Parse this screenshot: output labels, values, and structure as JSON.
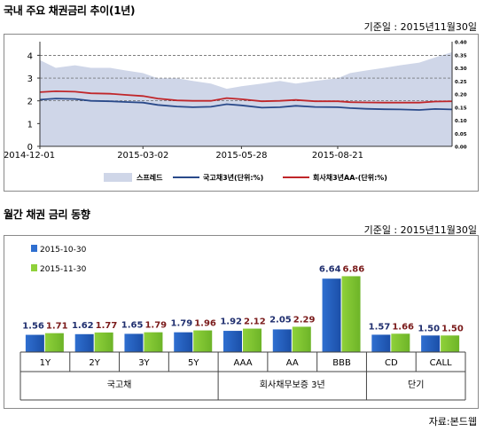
{
  "section1": {
    "title": "국내 주요 채권금리 추이(1년)",
    "ref_date": "기준일 : 2015년11월30일"
  },
  "section2": {
    "title": "월간 채권 금리 동향",
    "ref_date": "기준일 : 2015년11월30일"
  },
  "source": "자료:본드웹",
  "colors": {
    "spread": "#cfd6e8",
    "gov": "#2a4a8a",
    "corp": "#c0262a",
    "bar_oct": "#2f6fd0",
    "bar_nov": "#8fd13a"
  },
  "chart_data": [
    {
      "type": "line",
      "x_tick_labels": [
        "2014-12-01",
        "2015-03-02",
        "2015-05-28",
        "2015-08-21"
      ],
      "x_range": [
        "2014-12-01",
        "2015-11-30"
      ],
      "y_left_ticks": [
        "0",
        "1",
        "2",
        "3",
        "4"
      ],
      "y_left_range": [
        0,
        4.6
      ],
      "y_right_ticks": [
        "0.00",
        "0.05",
        "0.10",
        "0.15",
        "0.20",
        "0.25",
        "0.30",
        "0.35",
        "0.40"
      ],
      "y_right_range": [
        0,
        0.4
      ],
      "dashed_grid": [
        2,
        3,
        4
      ],
      "legend": [
        "스프레드",
        "국고채3년(단위:%)",
        "회사채3년AA-(단위:%)"
      ],
      "series": [
        {
          "name": "스프레드",
          "axis": "right",
          "style": "area",
          "x": [
            "2014-12-01",
            "2014-12-15",
            "2015-01-01",
            "2015-01-15",
            "2015-02-01",
            "2015-02-15",
            "2015-03-02",
            "2015-03-15",
            "2015-04-01",
            "2015-04-15",
            "2015-05-01",
            "2015-05-15",
            "2015-05-28",
            "2015-06-15",
            "2015-07-01",
            "2015-07-15",
            "2015-08-01",
            "2015-08-21",
            "2015-09-01",
            "2015-09-15",
            "2015-10-01",
            "2015-10-15",
            "2015-11-01",
            "2015-11-15",
            "2015-11-30"
          ],
          "values": [
            0.33,
            0.3,
            0.31,
            0.3,
            0.3,
            0.29,
            0.28,
            0.26,
            0.26,
            0.25,
            0.24,
            0.22,
            0.23,
            0.24,
            0.25,
            0.24,
            0.25,
            0.26,
            0.28,
            0.29,
            0.3,
            0.31,
            0.32,
            0.34,
            0.36
          ]
        },
        {
          "name": "국고채3년(단위:%)",
          "axis": "left",
          "style": "line",
          "x": [
            "2014-12-01",
            "2014-12-15",
            "2015-01-01",
            "2015-01-15",
            "2015-02-01",
            "2015-02-15",
            "2015-03-02",
            "2015-03-15",
            "2015-04-01",
            "2015-04-15",
            "2015-05-01",
            "2015-05-15",
            "2015-05-28",
            "2015-06-15",
            "2015-07-01",
            "2015-07-15",
            "2015-08-01",
            "2015-08-21",
            "2015-09-01",
            "2015-09-15",
            "2015-10-01",
            "2015-10-15",
            "2015-11-01",
            "2015-11-15",
            "2015-11-30"
          ],
          "values": [
            2.05,
            2.1,
            2.08,
            2.0,
            1.98,
            1.95,
            1.92,
            1.82,
            1.75,
            1.72,
            1.74,
            1.85,
            1.8,
            1.7,
            1.72,
            1.78,
            1.73,
            1.72,
            1.68,
            1.65,
            1.63,
            1.62,
            1.6,
            1.64,
            1.62
          ]
        },
        {
          "name": "회사채3년AA-(단위:%)",
          "axis": "left",
          "style": "line",
          "x": [
            "2014-12-01",
            "2014-12-15",
            "2015-01-01",
            "2015-01-15",
            "2015-02-01",
            "2015-02-15",
            "2015-03-02",
            "2015-03-15",
            "2015-04-01",
            "2015-04-15",
            "2015-05-01",
            "2015-05-15",
            "2015-05-28",
            "2015-06-15",
            "2015-07-01",
            "2015-07-15",
            "2015-08-01",
            "2015-08-21",
            "2015-09-01",
            "2015-09-15",
            "2015-10-01",
            "2015-10-15",
            "2015-11-01",
            "2015-11-15",
            "2015-11-30"
          ],
          "values": [
            2.38,
            2.42,
            2.4,
            2.33,
            2.31,
            2.26,
            2.21,
            2.1,
            2.02,
            2.0,
            2.0,
            2.12,
            2.07,
            1.98,
            2.0,
            2.04,
            1.98,
            1.98,
            1.94,
            1.93,
            1.92,
            1.92,
            1.92,
            1.97,
            1.98
          ]
        }
      ]
    },
    {
      "type": "bar",
      "legend": [
        "2015-10-30",
        "2015-11-30"
      ],
      "categories": [
        "1Y",
        "2Y",
        "3Y",
        "5Y",
        "AAA",
        "AA",
        "BBB",
        "CD",
        "CALL"
      ],
      "groups": [
        {
          "label": "국고채",
          "span": [
            0,
            3
          ]
        },
        {
          "label": "회사채무보증 3년",
          "span": [
            4,
            6
          ]
        },
        {
          "label": "단기",
          "span": [
            7,
            8
          ]
        }
      ],
      "series": [
        {
          "name": "2015-10-30",
          "values": [
            1.56,
            1.62,
            1.65,
            1.79,
            1.92,
            2.05,
            6.64,
            1.57,
            1.5
          ]
        },
        {
          "name": "2015-11-30",
          "values": [
            1.71,
            1.77,
            1.79,
            1.96,
            2.12,
            2.29,
            6.86,
            1.66,
            1.5
          ]
        }
      ],
      "labels_oct": [
        "1.56",
        "1.62",
        "1.65",
        "1.79",
        "1.92",
        "2.05",
        "6.64",
        "1.57",
        "1.50"
      ],
      "labels_nov": [
        "1.71",
        "1.77",
        "1.79",
        "1.96",
        "2.12",
        "2.29",
        "6.86",
        "1.66",
        "1.50"
      ],
      "ylim": [
        0,
        8.5
      ]
    }
  ]
}
